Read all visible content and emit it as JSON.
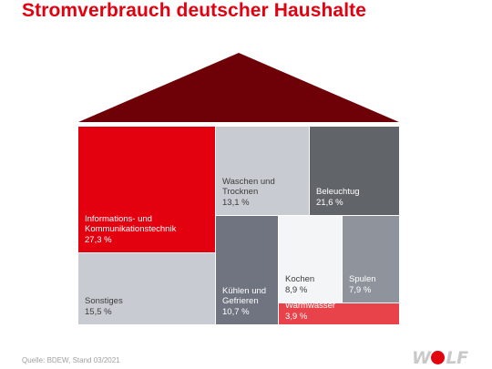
{
  "title": "Stromverbrauch deutscher Haushalte",
  "source": "Quelle: BDEW, Stand 03/2021",
  "logo": {
    "before": "W",
    "after": "LF"
  },
  "colors": {
    "title": "#e3000f",
    "roof": "#6e0007",
    "red": "#e3000f",
    "light_gray": "#c8cbd1",
    "dark_gray": "#616569",
    "slate": "#707480",
    "pale": "#f4f5f7",
    "mid_gray": "#8e939c",
    "light_red": "#e8434a"
  },
  "chart_data": {
    "type": "treemap",
    "title": "Stromverbrauch deutscher Haushalte",
    "unit": "%",
    "categories": [
      {
        "label": "Informations- und Kommunikationstechnik",
        "value": 27.3,
        "value_label": "27,3 %",
        "color": "#e3000f"
      },
      {
        "label": "Beleuchtug",
        "value": 21.6,
        "value_label": "21,6 %",
        "color": "#616569"
      },
      {
        "label": "Sonstiges",
        "value": 15.5,
        "value_label": "15,5 %",
        "color": "#c8cbd1"
      },
      {
        "label": "Waschen und Trocknen",
        "value": 13.1,
        "value_label": "13,1 %",
        "color": "#c8cbd1"
      },
      {
        "label": "Kühlen und Gefrieren",
        "value": 10.7,
        "value_label": "10,7 %",
        "color": "#707480"
      },
      {
        "label": "Kochen",
        "value": 8.9,
        "value_label": "8,9 %",
        "color": "#f4f5f7"
      },
      {
        "label": "Spulen",
        "value": 7.9,
        "value_label": "7,9 %",
        "color": "#8e939c"
      },
      {
        "label": "Warmwasser",
        "value": 3.9,
        "value_label": "3,9 %",
        "color": "#e8434a"
      }
    ]
  }
}
